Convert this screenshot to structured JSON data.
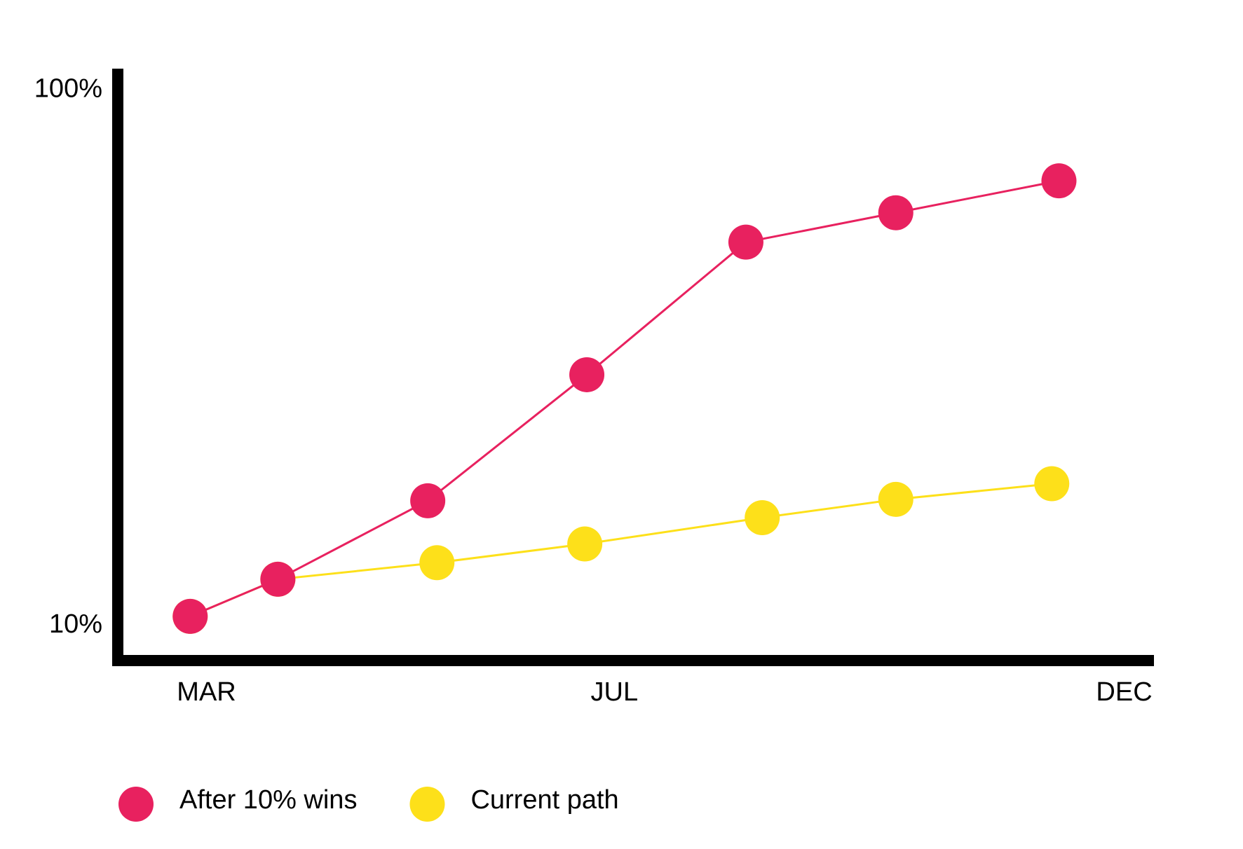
{
  "chart_data": {
    "type": "line",
    "series": [
      {
        "name": "Current path",
        "color": "#fde01a",
        "x": [
          2.84,
          3.7,
          5.26,
          6.71,
          8.45,
          9.76,
          11.29
        ],
        "values": [
          10.4,
          12.2,
          13.1,
          14.2,
          15.9,
          17.2,
          18.4
        ]
      },
      {
        "name": "After 10% wins",
        "color": "#e8215f",
        "x": [
          2.84,
          3.7,
          5.17,
          6.73,
          8.29,
          9.76,
          11.36
        ],
        "values": [
          10.4,
          12.2,
          17.1,
          29.4,
          52.0,
          59.0,
          67.7
        ]
      }
    ],
    "xlim": [
      2.13,
      12.45
    ],
    "xticks": [
      {
        "value": 3,
        "label": "MAR"
      },
      {
        "value": 7,
        "label": "JUL"
      },
      {
        "value": 12,
        "label": "DEC"
      }
    ],
    "ylim": [
      8.6,
      109
    ],
    "yticks": [
      {
        "value": 10,
        "label": "10%"
      },
      {
        "value": 100,
        "label": "100%"
      }
    ],
    "log_y": true,
    "legend_order": [
      1,
      0
    ]
  }
}
